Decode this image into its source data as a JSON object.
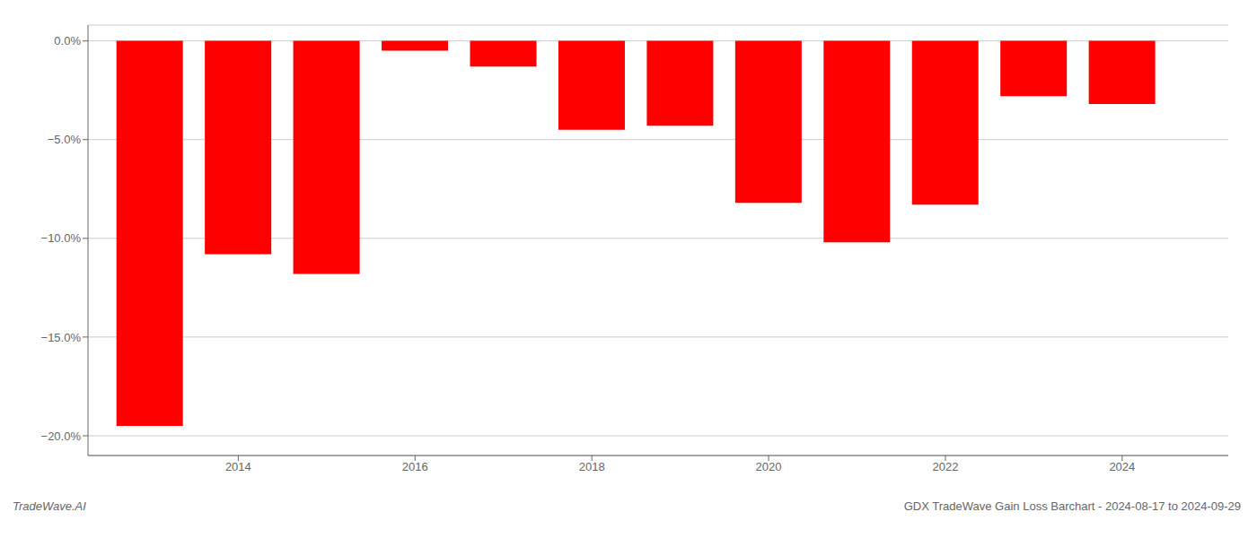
{
  "chart_data": {
    "type": "bar",
    "x": [
      2013,
      2014,
      2015,
      2016,
      2017,
      2018,
      2019,
      2020,
      2021,
      2022,
      2023,
      2024
    ],
    "values": [
      -19.5,
      -10.8,
      -11.8,
      -0.5,
      -1.3,
      -4.5,
      -4.3,
      -8.2,
      -10.2,
      -8.3,
      -2.8,
      -3.2
    ],
    "color": "#ff0000",
    "xlim": [
      2012.3,
      2025.2
    ],
    "xticks": [
      2014,
      2016,
      2018,
      2020,
      2022,
      2024
    ],
    "ylim": [
      -21.0,
      0.8
    ],
    "yticks": [
      {
        "value": 0.0,
        "label": "0.0%"
      },
      {
        "value": -5.0,
        "label": "−5.0%"
      },
      {
        "value": -10.0,
        "label": "−10.0%"
      },
      {
        "value": -15.0,
        "label": "−15.0%"
      },
      {
        "value": -20.0,
        "label": "−20.0%"
      }
    ],
    "grid": true,
    "annotations": [
      "TradeWave.AI",
      "GDX TradeWave Gain Loss Barchart - 2024-08-17 to 2024-09-29"
    ]
  }
}
